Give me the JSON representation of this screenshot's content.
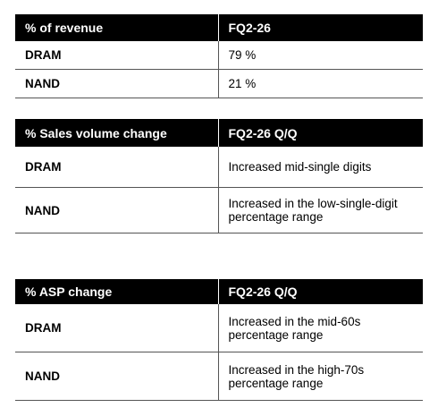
{
  "revenue_table": {
    "header_label": "% of revenue",
    "header_period": "FQ2-26",
    "rows": [
      {
        "label": "DRAM",
        "value": "79 %"
      },
      {
        "label": "NAND",
        "value": "21 %"
      }
    ]
  },
  "volume_table": {
    "header_label": "% Sales volume change",
    "header_period": "FQ2-26 Q/Q",
    "rows": [
      {
        "label": "DRAM",
        "value": "Increased mid-single digits"
      },
      {
        "label": "NAND",
        "value": "Increased in the low-single-digit percentage range"
      }
    ]
  },
  "asp_table": {
    "header_label": "% ASP change",
    "header_period": "FQ2-26 Q/Q",
    "rows": [
      {
        "label": "DRAM",
        "value": "Increased in the mid-60s percentage range"
      },
      {
        "label": "NAND",
        "value": "Increased in the high-70s percentage range"
      }
    ]
  }
}
